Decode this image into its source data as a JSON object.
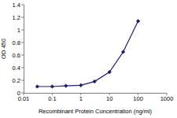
{
  "chart_data": {
    "type": "line",
    "x_label": "Recombinant Protein Concentration (ng/ml)",
    "y_label": "OD 450",
    "x": [
      0.03,
      0.1,
      0.3,
      1,
      3,
      10,
      30,
      100
    ],
    "series": [
      {
        "name": "OD 450",
        "color": "#1c1c78",
        "marker": "diamond",
        "line_style": "solid",
        "values": [
          0.1,
          0.1,
          0.11,
          0.12,
          0.18,
          0.33,
          0.65,
          1.14
        ]
      }
    ],
    "xlim": [
      0.01,
      1000
    ],
    "xticks": [
      0.01,
      0.1,
      1,
      10,
      100,
      1000
    ],
    "ylim": [
      0,
      1.4
    ],
    "yticks": [
      0,
      0.2,
      0.4,
      0.6,
      0.8,
      1,
      1.2,
      1.4
    ],
    "log": "x",
    "grid": false
  }
}
